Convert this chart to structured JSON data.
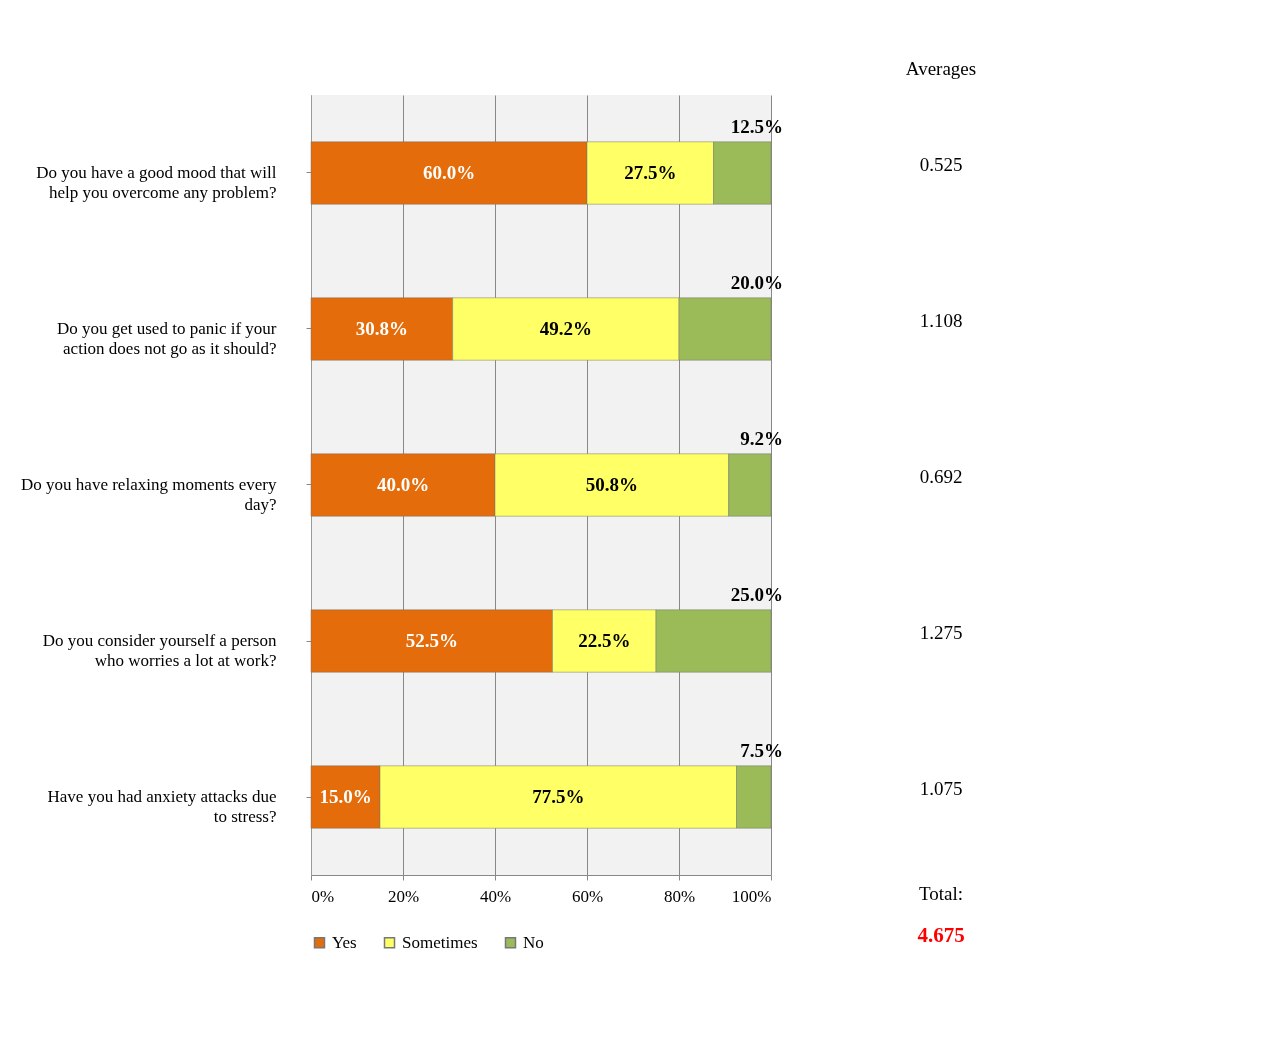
{
  "chart_data": {
    "type": "bar",
    "orientation": "horizontal",
    "stacked": true,
    "categories": [
      "Do you have a good mood that will help you overcome any problem?",
      "Do you get used to panic if your action does not go as it should?",
      "Do you have relaxing moments every day?",
      "Do you consider yourself a person who worries a lot at work?",
      "Have you had anxiety attacks due to stress?"
    ],
    "series": [
      {
        "name": "Yes",
        "color": "#e46c0a",
        "values": [
          60.0,
          30.8,
          40.0,
          52.5,
          15.0
        ],
        "value_labels": [
          "60.0%",
          "30.8%",
          "40.0%",
          "52.5%",
          "15.0%"
        ]
      },
      {
        "name": "Sometimes",
        "color": "#ffff66",
        "values": [
          27.5,
          49.2,
          50.8,
          22.5,
          77.5
        ],
        "value_labels": [
          "27.5%",
          "49.2%",
          "50.8%",
          "22.5%",
          "77.5%"
        ]
      },
      {
        "name": "No",
        "color": "#9bbb59",
        "values": [
          12.5,
          20.0,
          9.2,
          25.0,
          7.5
        ],
        "value_labels": [
          "12.5%",
          "20.0%",
          "9.2%",
          "25.0%",
          "7.5%"
        ]
      }
    ],
    "xlim": [
      0,
      100
    ],
    "xticks": [
      {
        "value": 0,
        "label": "0%"
      },
      {
        "value": 20,
        "label": "20%"
      },
      {
        "value": 40,
        "label": "40%"
      },
      {
        "value": 60,
        "label": "60%"
      },
      {
        "value": 80,
        "label": "80%"
      },
      {
        "value": 100,
        "label": "100%"
      }
    ],
    "grid": "x",
    "legend": "bottom",
    "annotations": [
      "Averages",
      "0.525",
      "1.108",
      "0.692",
      "1.275",
      "1.075",
      "Total:",
      "4.675"
    ]
  }
}
